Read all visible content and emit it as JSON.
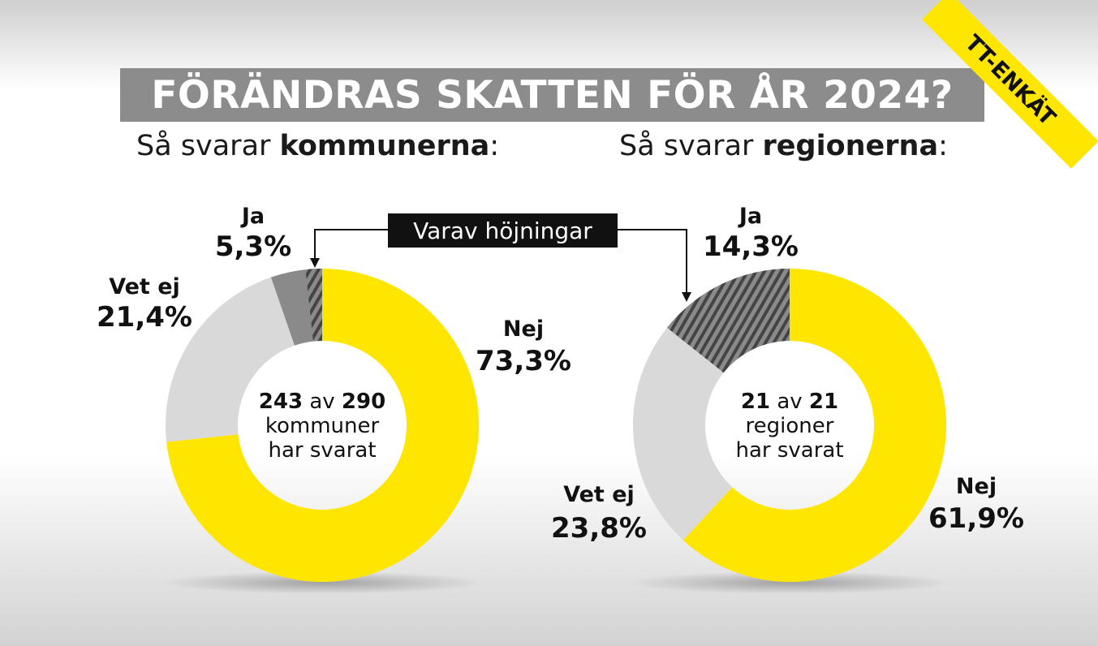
{
  "title": "FÖRÄNDRAS SKATTEN FÖR ÅR 2024?",
  "badge": "TT-ENKÄT",
  "callout": "Varav höjningar",
  "colors": {
    "yellow": "#ffe600",
    "light_gray": "#d9d9d9",
    "dark_gray": "#8a8a8a",
    "hatch_dark": "#555555",
    "title_bg": "#8c8c8c"
  },
  "chart_data": [
    {
      "type": "pie",
      "subtitle_prefix": "Så svarar ",
      "subtitle_bold": "kommunerna",
      "subtitle_suffix": ":",
      "center": {
        "n1": "243",
        "mid": " av ",
        "n2": "290",
        "line2": "kommuner",
        "line3": "har svarat"
      },
      "slices": [
        {
          "label": "Nej",
          "value": 73.3,
          "value_label": "73,3%",
          "color": "#ffe600"
        },
        {
          "label": "Vet ej",
          "value": 21.4,
          "value_label": "21,4%",
          "color": "#d9d9d9"
        },
        {
          "label": "Ja",
          "value": 5.3,
          "value_label": "5,3%",
          "color": "#8a8a8a",
          "hatched_share": 0.32
        }
      ]
    },
    {
      "type": "pie",
      "subtitle_prefix": "Så svarar ",
      "subtitle_bold": "regionerna",
      "subtitle_suffix": ":",
      "center": {
        "n1": "21",
        "mid": " av ",
        "n2": "21",
        "line2": "regioner",
        "line3": "har svarat"
      },
      "slices": [
        {
          "label": "Nej",
          "value": 61.9,
          "value_label": "61,9%",
          "color": "#ffe600"
        },
        {
          "label": "Vet ej",
          "value": 23.8,
          "value_label": "23,8%",
          "color": "#d9d9d9"
        },
        {
          "label": "Ja",
          "value": 14.3,
          "value_label": "14,3%",
          "color": "#8a8a8a",
          "hatched_share": 1.0
        }
      ]
    }
  ]
}
